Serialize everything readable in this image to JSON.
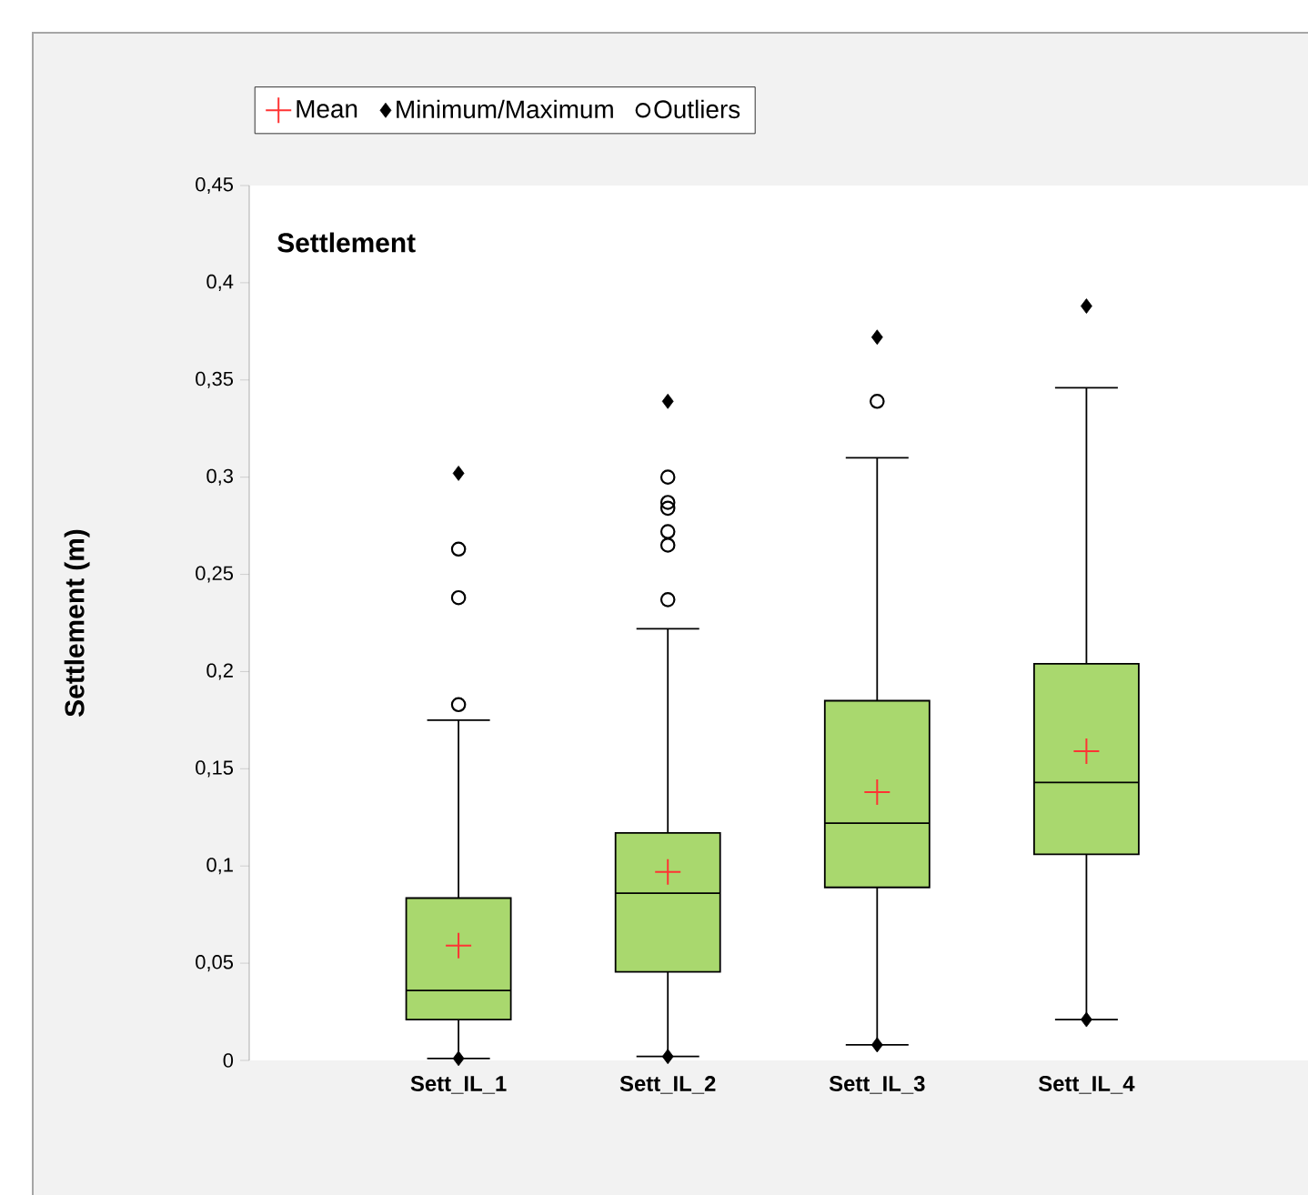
{
  "chart_data": {
    "type": "box",
    "title": "Settlement",
    "ylabel": "Settlement (m)",
    "categories": [
      "Sett_IL_1",
      "Sett_IL_2",
      "Sett_IL_3",
      "Sett_IL_4"
    ],
    "color": "#a9d86e",
    "boxes": [
      {
        "low": 0.001,
        "q1": 0.021,
        "median": 0.036,
        "q3": 0.0835,
        "high": 0.175
      },
      {
        "low": 0.002,
        "q1": 0.0455,
        "median": 0.086,
        "q3": 0.117,
        "high": 0.222
      },
      {
        "low": 0.008,
        "q1": 0.089,
        "median": 0.122,
        "q3": 0.185,
        "high": 0.31
      },
      {
        "low": 0.021,
        "q1": 0.106,
        "median": 0.143,
        "q3": 0.204,
        "high": 0.346
      }
    ],
    "series": [
      {
        "name": "Mean",
        "type": "scatter",
        "marker": "cross",
        "color": "#ff3333",
        "values": [
          0.059,
          0.097,
          0.138,
          0.159
        ]
      },
      {
        "name": "Minimum/Maximum",
        "type": "scatter",
        "marker": "diamond",
        "color": "#000000",
        "x": [
          "Sett_IL_1",
          "Sett_IL_1",
          "Sett_IL_2",
          "Sett_IL_2",
          "Sett_IL_3",
          "Sett_IL_3",
          "Sett_IL_4",
          "Sett_IL_4"
        ],
        "values": [
          0.001,
          0.302,
          0.002,
          0.339,
          0.008,
          0.372,
          0.021,
          0.388
        ]
      },
      {
        "name": "Outliers",
        "type": "scatter",
        "marker": "circle",
        "color": "#000000",
        "x": [
          "Sett_IL_1",
          "Sett_IL_1",
          "Sett_IL_1",
          "Sett_IL_2",
          "Sett_IL_2",
          "Sett_IL_2",
          "Sett_IL_2",
          "Sett_IL_2",
          "Sett_IL_2",
          "Sett_IL_3"
        ],
        "values": [
          0.183,
          0.238,
          0.263,
          0.237,
          0.265,
          0.272,
          0.284,
          0.287,
          0.3,
          0.339
        ]
      }
    ],
    "ylim": [
      0,
      0.45
    ],
    "yticks": [
      0,
      {
        "value": 0.05,
        "label": "0,05"
      },
      {
        "value": 0.1,
        "label": "0,1"
      },
      {
        "value": 0.15,
        "label": "0,15"
      },
      {
        "value": 0.2,
        "label": "0,2"
      },
      {
        "value": 0.25,
        "label": "0,25"
      },
      {
        "value": 0.3,
        "label": "0,3"
      },
      {
        "value": 0.35,
        "label": "0,35"
      },
      {
        "value": 0.4,
        "label": "0,4"
      },
      {
        "value": 0.45,
        "label": "0,45"
      }
    ],
    "legend": "top"
  }
}
